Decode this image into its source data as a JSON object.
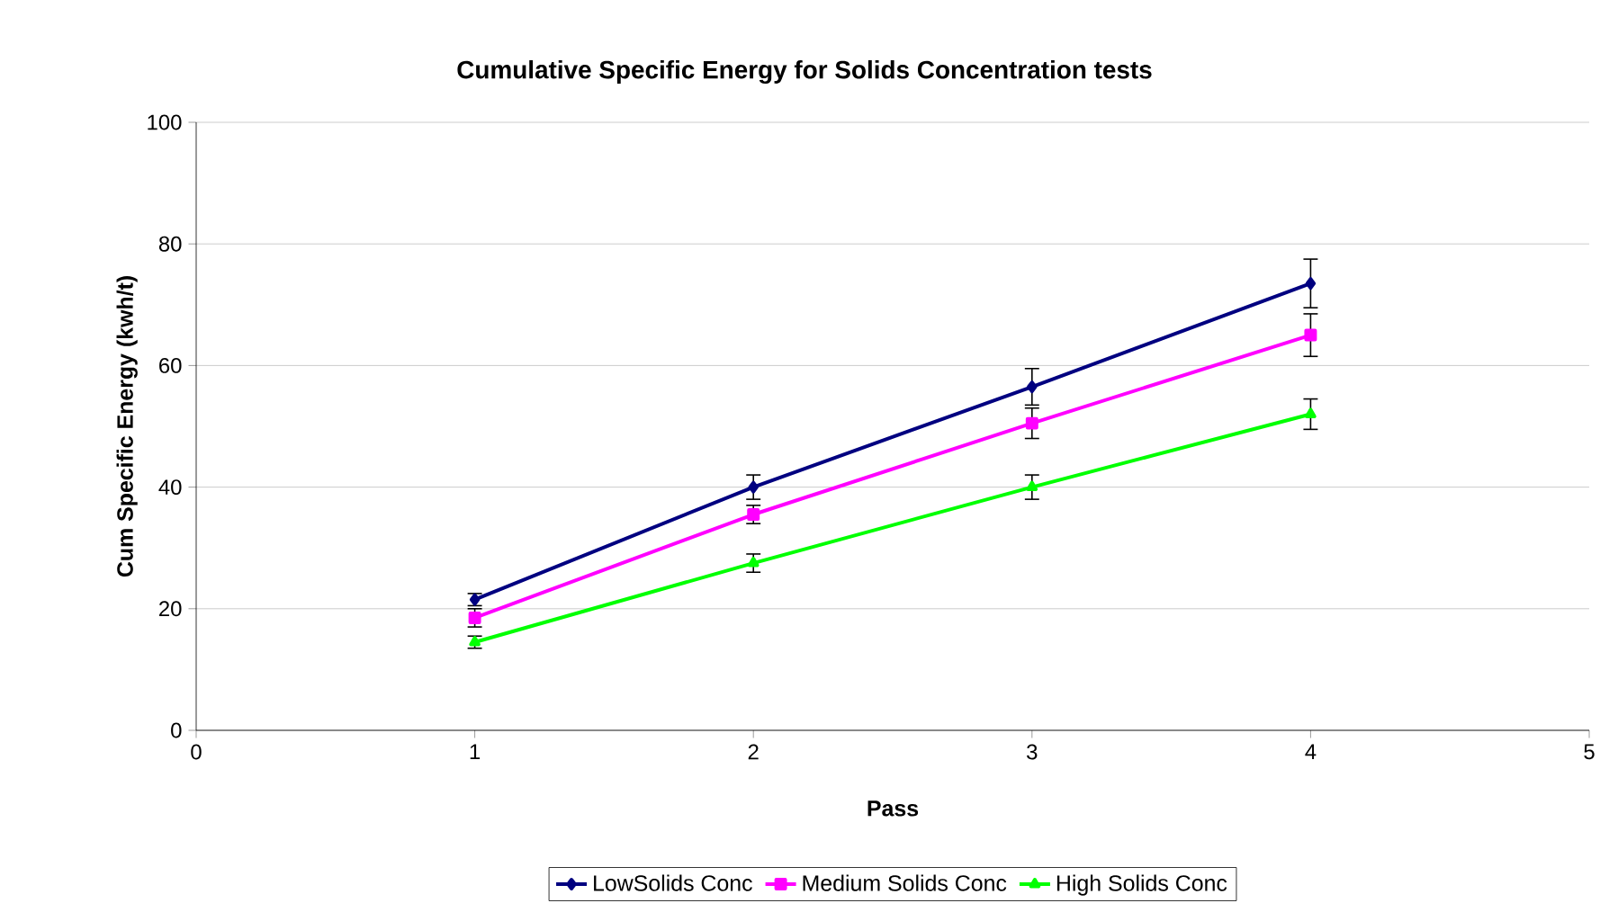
{
  "chart_data": {
    "type": "line",
    "title": "Cumulative Specific Energy for Solids Concentration tests",
    "xlabel": "Pass",
    "ylabel": "Cum Specific Energy (kwh/t)",
    "x": [
      1,
      2,
      3,
      4
    ],
    "series": [
      {
        "name": "LowSolids Conc",
        "color": "#000080",
        "marker": "diamond",
        "values": [
          21.5,
          40,
          56.5,
          73.5
        ],
        "errors": [
          1,
          2,
          3,
          4
        ]
      },
      {
        "name": "Medium Solids Conc",
        "color": "#ff00ff",
        "marker": "square",
        "values": [
          18.5,
          35.5,
          50.5,
          65
        ],
        "errors": [
          1.5,
          1.5,
          2.5,
          3.5
        ]
      },
      {
        "name": "High Solids Conc",
        "color": "#00ff00",
        "marker": "triangle",
        "values": [
          14.5,
          27.5,
          40,
          52
        ],
        "errors": [
          1,
          1.5,
          2,
          2.5
        ]
      }
    ],
    "xlim": [
      0,
      5
    ],
    "xticks": [
      0,
      1,
      2,
      3,
      4,
      5
    ],
    "ylim": [
      0,
      100
    ],
    "yticks": [
      0,
      20,
      40,
      60,
      80,
      100
    ],
    "grid": "y",
    "legend": "bottom",
    "line_style": "solid"
  }
}
